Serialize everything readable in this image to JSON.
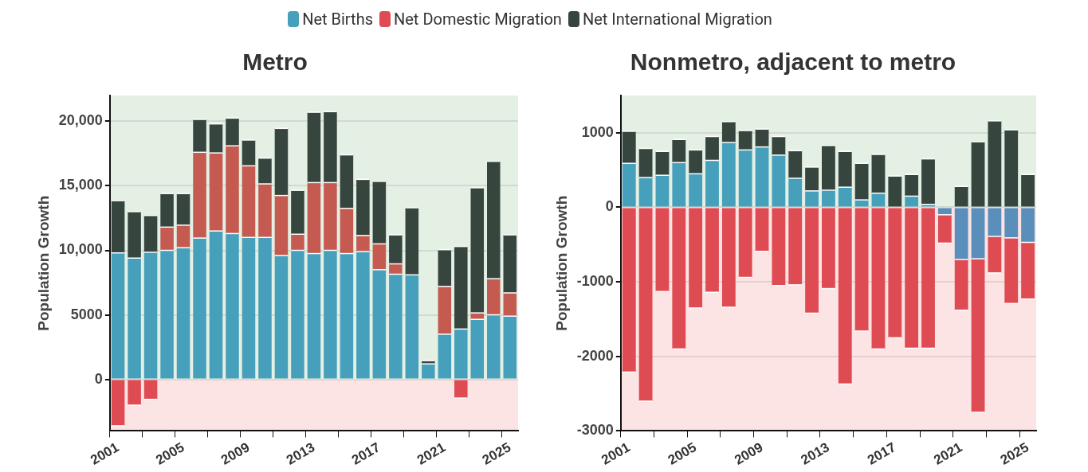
{
  "chart_data": [
    {
      "type": "bar",
      "title": "Metro",
      "ylabel": "Population Growth",
      "stacked": true,
      "legend": "top",
      "grid": "y",
      "categories": [
        "2001",
        null,
        null,
        null,
        "2005",
        null,
        null,
        null,
        "2009",
        null,
        null,
        null,
        "2013",
        null,
        null,
        null,
        "2017",
        null,
        null,
        null,
        "2021",
        null,
        null,
        null,
        "2025"
      ],
      "ylim": [
        -4000,
        22000
      ],
      "yticks": [
        0,
        {
          "value": 5000,
          "label": "5000"
        },
        {
          "value": 10000,
          "label": "10,000"
        },
        {
          "value": 15000,
          "label": "15,000"
        },
        {
          "value": 20000,
          "label": "20,000"
        }
      ],
      "bands": [
        {
          "axis": "y",
          "from": 0,
          "to": 22000,
          "color": "#e5f0e5"
        },
        {
          "axis": "y",
          "from": -4000,
          "to": 0,
          "color": "#fde4e4"
        }
      ],
      "series": [
        {
          "name": "Net Births",
          "color": "#47a0bb",
          "values": [
            9800,
            9400,
            9850,
            10000,
            10200,
            10950,
            11500,
            11300,
            11000,
            11000,
            9600,
            10000,
            9750,
            10000,
            9750,
            9900,
            8500,
            8150,
            8100,
            1200,
            3500,
            3900,
            4650,
            5000,
            4900
          ]
        },
        {
          "name": "Net Domestic Migration",
          "color": "#df4b52",
          "colors": [
            "#df4b52",
            "#df4b52",
            "#df4b52",
            "#c45a50",
            "#c45a50",
            "#c45a50",
            "#c45a50",
            "#c45a50",
            "#c45a50",
            "#c45a50",
            "#c45a50",
            "#c45a50",
            "#c45a50",
            "#c45a50",
            "#c45a50",
            "#c45a50",
            "#c45a50",
            "#c45a50",
            "#c45a50",
            "#df4b52",
            "#c45a50",
            "#df4b52",
            "#c45a50",
            "#c45a50",
            "#c45a50"
          ],
          "values": [
            -3600,
            -2000,
            -1550,
            1800,
            1750,
            6650,
            6050,
            6800,
            5550,
            4150,
            4650,
            1250,
            5500,
            5250,
            3500,
            1250,
            2000,
            800,
            0,
            null,
            3700,
            -1450,
            500,
            2800,
            1800
          ]
        },
        {
          "name": "Net International Migration",
          "color": "#37453f",
          "values": [
            4050,
            3600,
            2850,
            2600,
            2450,
            2550,
            2250,
            2150,
            2000,
            2000,
            5200,
            3400,
            5450,
            5500,
            4150,
            4350,
            4850,
            2250,
            5200,
            250,
            2850,
            6400,
            9700,
            9100,
            4500
          ]
        }
      ]
    },
    {
      "type": "bar",
      "title": "Nonmetro, adjacent to metro",
      "ylabel": "Population Growth",
      "stacked": true,
      "grid": "y",
      "categories": [
        "2001",
        null,
        null,
        null,
        "2005",
        null,
        null,
        null,
        "2009",
        null,
        null,
        null,
        "2013",
        null,
        null,
        null,
        "2017",
        null,
        null,
        null,
        "2021",
        null,
        null,
        null,
        "2025"
      ],
      "ylim": [
        -3000,
        1500
      ],
      "yticks": [
        -3000,
        -2000,
        -1000,
        0,
        1000
      ],
      "bands": [
        {
          "axis": "y",
          "from": 0,
          "to": 1500,
          "color": "#e5f0e5"
        },
        {
          "axis": "y",
          "from": -3000,
          "to": 0,
          "color": "#fde4e4"
        }
      ],
      "series": [
        {
          "colors": [
            "#47a0bb",
            "#47a0bb",
            "#47a0bb",
            "#47a0bb",
            "#47a0bb",
            "#47a0bb",
            "#47a0bb",
            "#47a0bb",
            "#47a0bb",
            "#47a0bb",
            "#47a0bb",
            "#47a0bb",
            "#47a0bb",
            "#47a0bb",
            "#47a0bb",
            "#47a0bb",
            "#47a0bb",
            "#47a0bb",
            "#47a0bb",
            "#5b8fbb",
            "#5b8fbb",
            "#5b8fbb",
            "#5b8fbb",
            "#5b8fbb",
            "#5b8fbb"
          ],
          "values": [
            590,
            400,
            430,
            600,
            450,
            630,
            870,
            770,
            810,
            700,
            390,
            220,
            230,
            270,
            100,
            190,
            0,
            150,
            40,
            -100,
            -700,
            -690,
            -390,
            -410,
            -470
          ]
        },
        {
          "color": "#df4b52",
          "values": [
            -2210,
            -2600,
            -1130,
            -1900,
            -1350,
            -1140,
            -1340,
            -940,
            -590,
            -1050,
            -1040,
            -1420,
            -1090,
            -2370,
            -1660,
            -1900,
            -1750,
            -1890,
            -1890,
            -380,
            -680,
            -2060,
            -490,
            -880,
            -760
          ]
        },
        {
          "color": "#37453f",
          "values": [
            430,
            390,
            320,
            310,
            320,
            320,
            280,
            260,
            240,
            250,
            370,
            320,
            600,
            480,
            490,
            520,
            420,
            290,
            610,
            null,
            280,
            880,
            1160,
            1040,
            440
          ]
        }
      ]
    }
  ]
}
